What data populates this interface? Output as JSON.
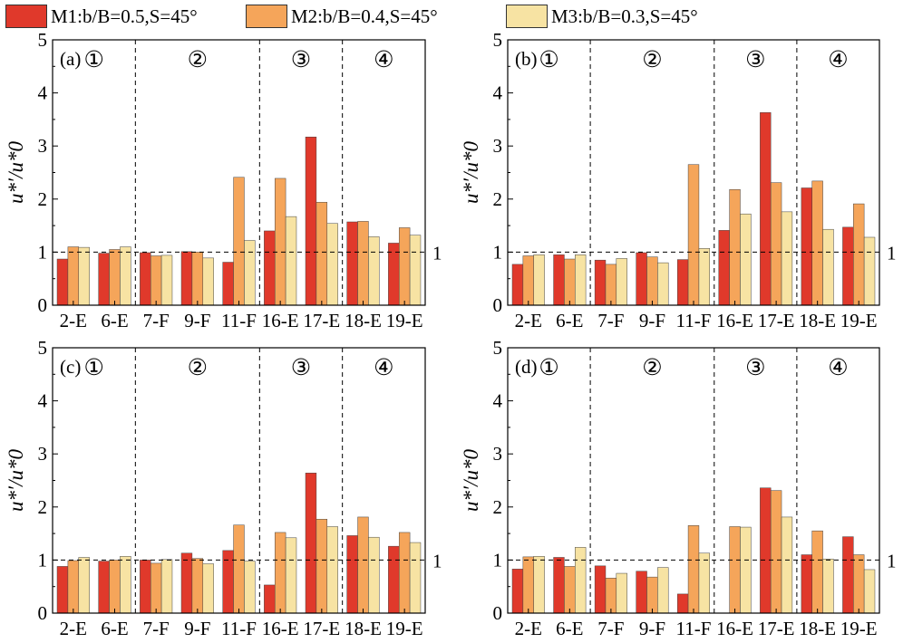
{
  "legend": [
    {
      "label": "M1:b/B=0.5,S=45°",
      "color": "#e0392b"
    },
    {
      "label": "M2:b/B=0.4,S=45°",
      "color": "#f5a55a"
    },
    {
      "label": "M3:b/B=0.3,S=45°",
      "color": "#f7e3a3"
    }
  ],
  "chart_data": [
    {
      "type": "bar",
      "panel_label": "(a)",
      "categories": [
        "2-E",
        "6-E",
        "7-F",
        "9-F",
        "11-F",
        "16-E",
        "17-E",
        "18-E",
        "19-E"
      ],
      "series": [
        {
          "name": "M1:b/B=0.5,S=45°",
          "values": [
            0.87,
            0.98,
            0.99,
            1.01,
            0.81,
            1.4,
            3.17,
            1.57,
            1.17
          ]
        },
        {
          "name": "M2:b/B=0.4,S=45°",
          "values": [
            1.1,
            1.05,
            0.93,
            1.0,
            2.41,
            2.39,
            1.94,
            1.58,
            1.46
          ]
        },
        {
          "name": "M3:b/B=0.3,S=45°",
          "values": [
            1.09,
            1.1,
            0.94,
            0.89,
            1.22,
            1.67,
            1.54,
            1.29,
            1.32
          ]
        }
      ],
      "zones": [
        "①",
        "②",
        "③",
        "④"
      ],
      "reference_line": {
        "value": 1,
        "label": "1"
      },
      "ylabel": "u*′/u*0",
      "ylim": [
        0,
        5
      ],
      "yticks": [
        "0",
        "1",
        "2",
        "3",
        "4",
        "5"
      ]
    },
    {
      "type": "bar",
      "panel_label": "(b)",
      "categories": [
        "2-E",
        "6-E",
        "7-F",
        "9-F",
        "11-F",
        "16-E",
        "17-E",
        "18-E",
        "19-E"
      ],
      "series": [
        {
          "name": "M1:b/B=0.5,S=45°",
          "values": [
            0.77,
            0.95,
            0.85,
            0.99,
            0.86,
            1.41,
            3.63,
            2.21,
            1.47
          ]
        },
        {
          "name": "M2:b/B=0.4,S=45°",
          "values": [
            0.93,
            0.87,
            0.77,
            0.91,
            2.65,
            2.18,
            2.31,
            2.34,
            1.91
          ]
        },
        {
          "name": "M3:b/B=0.3,S=45°",
          "values": [
            0.95,
            0.95,
            0.88,
            0.8,
            1.07,
            1.72,
            1.76,
            1.43,
            1.28
          ]
        }
      ],
      "zones": [
        "①",
        "②",
        "③",
        "④"
      ],
      "reference_line": {
        "value": 1,
        "label": "1"
      },
      "ylabel": "u*′/u*0",
      "ylim": [
        0,
        5
      ],
      "yticks": [
        "0",
        "1",
        "2",
        "3",
        "4",
        "5"
      ]
    },
    {
      "type": "bar",
      "panel_label": "(c)",
      "categories": [
        "2-E",
        "6-E",
        "7-F",
        "9-F",
        "11-F",
        "16-E",
        "17-E",
        "18-E",
        "19-E"
      ],
      "series": [
        {
          "name": "M1:b/B=0.5,S=45°",
          "values": [
            0.88,
            0.98,
            1.0,
            1.13,
            1.18,
            0.53,
            2.64,
            1.46,
            1.26
          ]
        },
        {
          "name": "M2:b/B=0.4,S=45°",
          "values": [
            0.99,
            1.0,
            0.94,
            1.03,
            1.66,
            1.52,
            1.77,
            1.81,
            1.52
          ]
        },
        {
          "name": "M3:b/B=0.3,S=45°",
          "values": [
            1.05,
            1.07,
            1.01,
            0.93,
            0.98,
            1.42,
            1.63,
            1.43,
            1.33
          ]
        }
      ],
      "zones": [
        "①",
        "②",
        "③",
        "④"
      ],
      "reference_line": {
        "value": 1,
        "label": "1"
      },
      "ylabel": "u*′/u*0",
      "ylim": [
        0,
        5
      ],
      "yticks": [
        "0",
        "1",
        "2",
        "3",
        "4",
        "5"
      ]
    },
    {
      "type": "bar",
      "panel_label": "(d)",
      "categories": [
        "2-E",
        "6-E",
        "7-F",
        "9-F",
        "11-F",
        "16-E",
        "17-E",
        "18-E",
        "19-E"
      ],
      "series": [
        {
          "name": "M1:b/B=0.5,S=45°",
          "values": [
            0.83,
            1.05,
            0.89,
            0.79,
            0.36,
            0.0,
            2.36,
            1.1,
            1.44
          ]
        },
        {
          "name": "M2:b/B=0.4,S=45°",
          "values": [
            1.06,
            0.88,
            0.66,
            0.68,
            1.65,
            1.63,
            2.31,
            1.55,
            1.1
          ]
        },
        {
          "name": "M3:b/B=0.3,S=45°",
          "values": [
            1.07,
            1.24,
            0.75,
            0.86,
            1.13,
            1.62,
            1.81,
            1.02,
            0.82
          ]
        }
      ],
      "zones": [
        "①",
        "②",
        "③",
        "④"
      ],
      "reference_line": {
        "value": 1,
        "label": "1"
      },
      "ylabel": "u*′/u*0",
      "ylim": [
        0,
        5
      ],
      "yticks": [
        "0",
        "1",
        "2",
        "3",
        "4",
        "5"
      ]
    }
  ]
}
